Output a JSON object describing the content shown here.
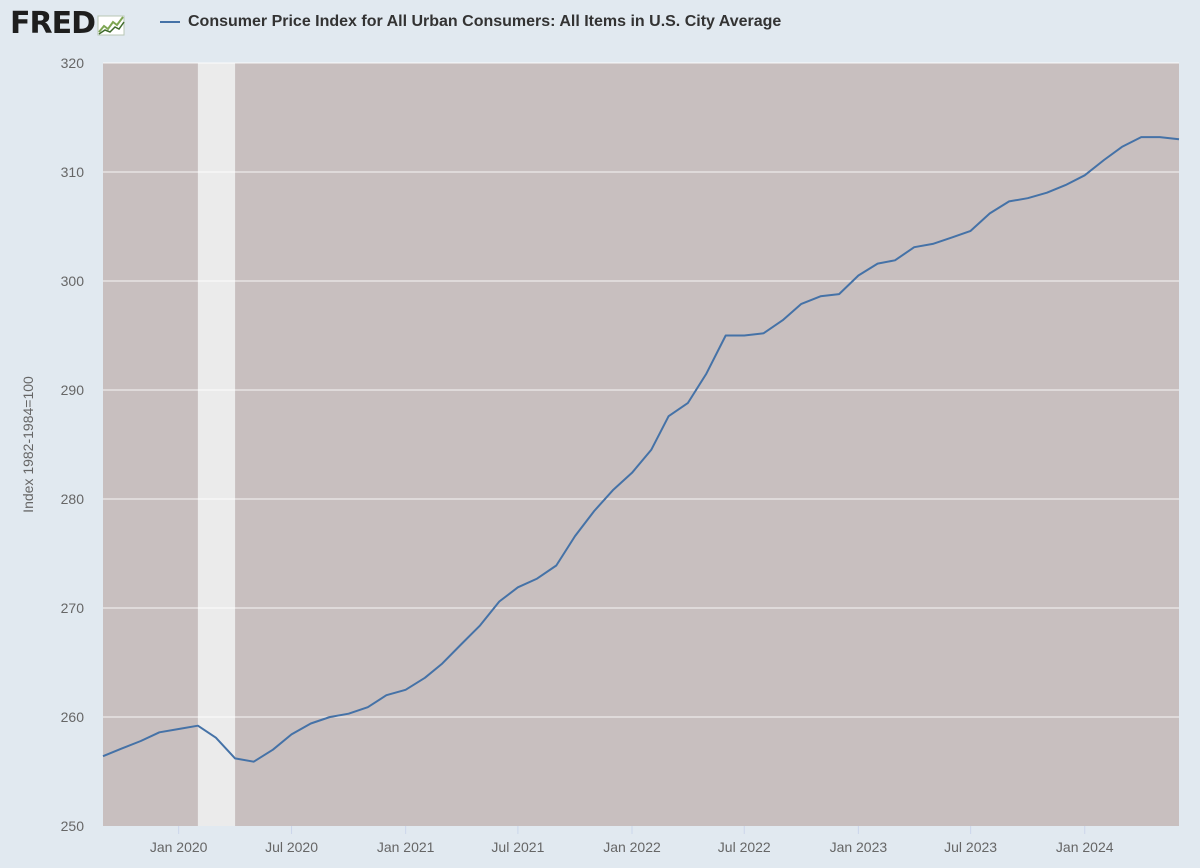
{
  "header": {
    "logo_text": "FRED",
    "legend_label": "Consumer Price Index for All Urban Consumers: All Items in U.S. City Average",
    "series_color": "#4572a7"
  },
  "chart_data": {
    "type": "line",
    "title": "",
    "ylabel": "Index 1982-1984=100",
    "ylim": [
      250,
      320
    ],
    "yticks": [
      250,
      260,
      270,
      280,
      290,
      300,
      310,
      320
    ],
    "xlim": [
      "2019-09-01",
      "2024-06-01"
    ],
    "xticks": [
      {
        "date": "2020-01-01",
        "label": "Jan 2020"
      },
      {
        "date": "2020-07-01",
        "label": "Jul 2020"
      },
      {
        "date": "2021-01-01",
        "label": "Jan 2021"
      },
      {
        "date": "2021-07-01",
        "label": "Jul 2021"
      },
      {
        "date": "2022-01-01",
        "label": "Jan 2022"
      },
      {
        "date": "2022-07-01",
        "label": "Jul 2022"
      },
      {
        "date": "2023-01-01",
        "label": "Jan 2023"
      },
      {
        "date": "2023-07-01",
        "label": "Jul 2023"
      },
      {
        "date": "2024-01-01",
        "label": "Jan 2024"
      }
    ],
    "recession": [
      "2020-02-01",
      "2020-04-01"
    ],
    "plot_background": "#c8bfbf",
    "recession_color": "#ebebeb",
    "grid": true,
    "series": [
      {
        "name": "Consumer Price Index for All Urban Consumers: All Items in U.S. City Average",
        "color": "#4572a7",
        "x": [
          "2019-09-01",
          "2019-10-01",
          "2019-11-01",
          "2019-12-01",
          "2020-01-01",
          "2020-02-01",
          "2020-03-01",
          "2020-04-01",
          "2020-05-01",
          "2020-06-01",
          "2020-07-01",
          "2020-08-01",
          "2020-09-01",
          "2020-10-01",
          "2020-11-01",
          "2020-12-01",
          "2021-01-01",
          "2021-02-01",
          "2021-03-01",
          "2021-04-01",
          "2021-05-01",
          "2021-06-01",
          "2021-07-01",
          "2021-08-01",
          "2021-09-01",
          "2021-10-01",
          "2021-11-01",
          "2021-12-01",
          "2022-01-01",
          "2022-02-01",
          "2022-03-01",
          "2022-04-01",
          "2022-05-01",
          "2022-06-01",
          "2022-07-01",
          "2022-08-01",
          "2022-09-01",
          "2022-10-01",
          "2022-11-01",
          "2022-12-01",
          "2023-01-01",
          "2023-02-01",
          "2023-03-01",
          "2023-04-01",
          "2023-05-01",
          "2023-06-01",
          "2023-07-01",
          "2023-08-01",
          "2023-09-01",
          "2023-10-01",
          "2023-11-01",
          "2023-12-01",
          "2024-01-01",
          "2024-02-01",
          "2024-03-01",
          "2024-04-01",
          "2024-05-01",
          "2024-06-01"
        ],
        "y": [
          256.4,
          257.1,
          257.8,
          258.6,
          258.9,
          259.2,
          258.1,
          256.2,
          255.9,
          257.0,
          258.4,
          259.4,
          260.0,
          260.3,
          260.9,
          262.0,
          262.5,
          263.6,
          264.9,
          266.7,
          268.4,
          270.6,
          271.9,
          272.7,
          273.9,
          276.6,
          278.9,
          280.8,
          282.4,
          284.5,
          287.6,
          288.8,
          291.5,
          295.0,
          295.0,
          295.2,
          296.4,
          297.9,
          298.6,
          298.8,
          300.5,
          301.6,
          301.9,
          303.1,
          303.4,
          304.0,
          304.6,
          306.2,
          307.3,
          307.6,
          308.1,
          308.8,
          309.7,
          311.1,
          312.3,
          313.2,
          313.2,
          313.0
        ]
      }
    ]
  }
}
